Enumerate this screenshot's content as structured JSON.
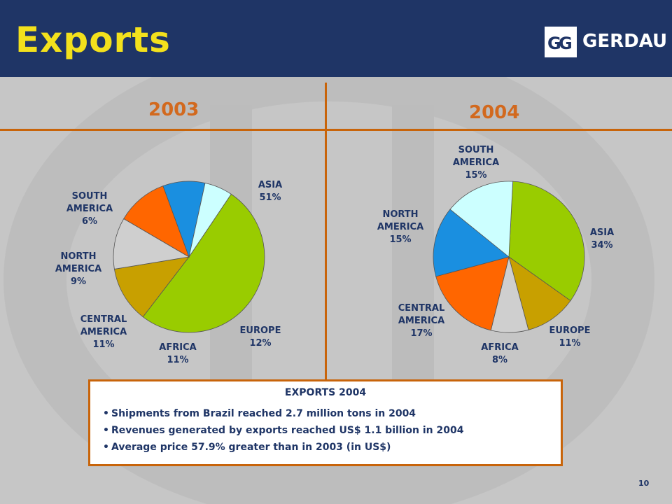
{
  "header": {
    "title": "Exports",
    "logo_text": "GERDAU"
  },
  "colors": {
    "header_bg": "#1f3566",
    "title": "#f3e11c",
    "accent": "#c8640a",
    "label": "#1f3566"
  },
  "chart_data": [
    {
      "type": "pie",
      "title": "2003",
      "slices": [
        {
          "name": "ASIA",
          "value": 51,
          "label": "51%",
          "color": "#99cc00"
        },
        {
          "name": "EUROPE",
          "value": 12,
          "label": "12%",
          "color": "#c8a000"
        },
        {
          "name": "AFRICA",
          "value": 11,
          "label": "11%",
          "color": "#cfcfcf"
        },
        {
          "name": "CENTRAL AMERICA",
          "value": 11,
          "label": "11%",
          "color": "#ff6600"
        },
        {
          "name": "NORTH AMERICA",
          "value": 9,
          "label": "9%",
          "color": "#1a8fe0"
        },
        {
          "name": "SOUTH AMERICA",
          "value": 6,
          "label": "6%",
          "color": "#ccffff"
        }
      ]
    },
    {
      "type": "pie",
      "title": "2004",
      "slices": [
        {
          "name": "ASIA",
          "value": 34,
          "label": "34%",
          "color": "#99cc00"
        },
        {
          "name": "EUROPE",
          "value": 11,
          "label": "11%",
          "color": "#c8a000"
        },
        {
          "name": "AFRICA",
          "value": 8,
          "label": "8%",
          "color": "#cfcfcf"
        },
        {
          "name": "CENTRAL AMERICA",
          "value": 17,
          "label": "17%",
          "color": "#ff6600"
        },
        {
          "name": "NORTH AMERICA",
          "value": 15,
          "label": "15%",
          "color": "#1a8fe0"
        },
        {
          "name": "SOUTH AMERICA",
          "value": 15,
          "label": "15%",
          "color": "#ccffff"
        }
      ]
    }
  ],
  "labels_2003": {
    "asia": "ASIA\n51%",
    "europe": "EUROPE\n12%",
    "africa": "AFRICA\n11%",
    "central_america": "CENTRAL\nAMERICA\n11%",
    "north_america": "NORTH\nAMERICA\n9%",
    "south_america": "SOUTH\nAMERICA\n6%"
  },
  "labels_2004": {
    "asia": "ASIA\n34%",
    "europe": "EUROPE\n11%",
    "africa": "AFRICA\n8%",
    "central_america": "CENTRAL\nAMERICA\n17%",
    "north_america": "NORTH\nAMERICA\n15%",
    "south_america": "SOUTH\nAMERICA\n15%"
  },
  "info": {
    "title": "EXPORTS 2004",
    "bullets": [
      "Shipments from Brazil reached 2.7 million tons in 2004",
      "Revenues generated by exports reached US$ 1.1 billion in 2004",
      "Average price 57.9% greater than in 2003 (in US$)"
    ]
  },
  "page_number": "10"
}
